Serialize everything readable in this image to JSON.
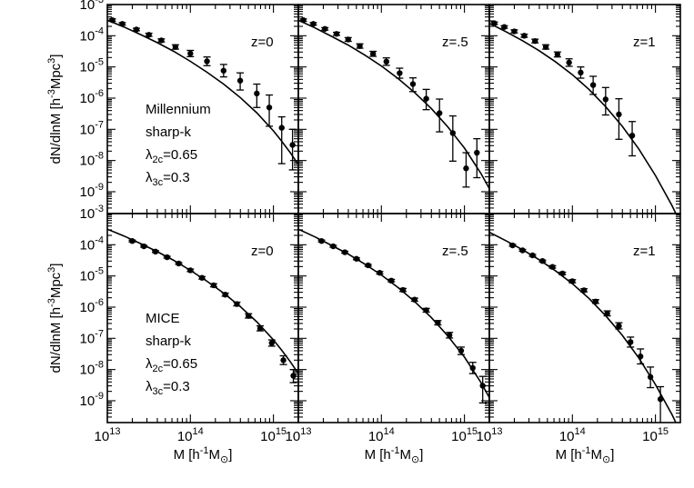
{
  "chart_data": {
    "type": "scatter",
    "title": "",
    "xlabel": "M [h⁻¹M⊙]",
    "ylabel": "dN/dlnM [h⁻³Mpc³]",
    "x_scale": "log10",
    "y_scale": "log10",
    "xlim_log10": [
      13,
      15.3
    ],
    "ylim_log10": [
      -9.7,
      -3
    ],
    "x_ticks": [
      "10^13",
      "10^14",
      "10^15"
    ],
    "y_ticks": [
      "10^-3",
      "10^-4",
      "10^-5",
      "10^-6",
      "10^-7",
      "10^-8",
      "10^-9"
    ],
    "rows": [
      {
        "simulation": "Millennium",
        "filter": "sharp-k",
        "lambda_2c": "0.65",
        "lambda_3c": "0.3",
        "panels": [
          {
            "z_label": "z=0",
            "model_curve_log10": {
              "x": [
                13.0,
                13.2,
                13.4,
                13.6,
                13.8,
                14.0,
                14.2,
                14.4,
                14.6,
                14.8,
                15.0,
                15.1,
                15.2,
                15.3
              ],
              "y": [
                -3.5,
                -3.72,
                -3.96,
                -4.22,
                -4.5,
                -4.82,
                -5.17,
                -5.55,
                -5.98,
                -6.47,
                -7.05,
                -7.38,
                -7.74,
                -8.13
              ]
            },
            "points_log10": {
              "x": [
                13.06,
                13.18,
                13.35,
                13.5,
                13.65,
                13.82,
                14.0,
                14.2,
                14.4,
                14.6,
                14.8,
                14.95,
                15.1,
                15.23
              ],
              "y": [
                -3.5,
                -3.62,
                -3.8,
                -3.97,
                -4.15,
                -4.36,
                -4.57,
                -4.82,
                -5.12,
                -5.44,
                -5.85,
                -6.3,
                -6.95,
                -7.5
              ],
              "err_lo": [
                0.04,
                0.04,
                0.04,
                0.05,
                0.05,
                0.07,
                0.1,
                0.14,
                0.2,
                0.3,
                0.45,
                0.6,
                1.15,
                0.8
              ],
              "err_hi": [
                0.04,
                0.04,
                0.04,
                0.05,
                0.05,
                0.07,
                0.1,
                0.14,
                0.2,
                0.25,
                0.3,
                0.4,
                0.35,
                0.5
              ]
            }
          },
          {
            "z_label": "z=.5",
            "model_curve_log10": {
              "x": [
                13.0,
                13.2,
                13.4,
                13.6,
                13.8,
                14.0,
                14.2,
                14.4,
                14.6,
                14.8,
                15.0,
                15.2,
                15.3
              ],
              "y": [
                -3.5,
                -3.75,
                -4.02,
                -4.3,
                -4.62,
                -4.97,
                -5.37,
                -5.82,
                -6.33,
                -6.92,
                -7.6,
                -8.42,
                -8.9
              ]
            },
            "points_log10": {
              "x": [
                13.06,
                13.18,
                13.32,
                13.46,
                13.6,
                13.74,
                13.9,
                14.06,
                14.22,
                14.38,
                14.54,
                14.7,
                14.86,
                15.02,
                15.15
              ],
              "y": [
                -3.5,
                -3.62,
                -3.78,
                -3.94,
                -4.12,
                -4.33,
                -4.58,
                -4.83,
                -5.2,
                -5.55,
                -6.02,
                -6.48,
                -7.12,
                -8.25,
                -7.75
              ],
              "err_lo": [
                0.04,
                0.04,
                0.04,
                0.05,
                0.06,
                0.07,
                0.08,
                0.12,
                0.16,
                0.24,
                0.35,
                0.6,
                0.9,
                0.6,
                0.8
              ],
              "err_hi": [
                0.04,
                0.04,
                0.04,
                0.05,
                0.06,
                0.07,
                0.08,
                0.12,
                0.16,
                0.2,
                0.3,
                0.45,
                0.55,
                0.5,
                0.45
              ]
            }
          },
          {
            "z_label": "z=1",
            "model_curve_log10": {
              "x": [
                13.0,
                13.2,
                13.4,
                13.6,
                13.8,
                14.0,
                14.2,
                14.4,
                14.6,
                14.8,
                15.0,
                15.2,
                15.3
              ],
              "y": [
                -3.6,
                -3.87,
                -4.16,
                -4.48,
                -4.84,
                -5.25,
                -5.72,
                -6.27,
                -6.9,
                -7.63,
                -8.48,
                -9.45,
                -10.0
              ]
            },
            "points_log10": {
              "x": [
                13.06,
                13.18,
                13.3,
                13.42,
                13.55,
                13.68,
                13.82,
                13.96,
                14.1,
                14.25,
                14.4,
                14.56,
                14.72
              ],
              "y": [
                -3.6,
                -3.72,
                -3.86,
                -4.0,
                -4.17,
                -4.36,
                -4.6,
                -4.86,
                -5.18,
                -5.58,
                -6.04,
                -6.52,
                -7.2
              ],
              "err_lo": [
                0.04,
                0.04,
                0.05,
                0.05,
                0.06,
                0.07,
                0.08,
                0.12,
                0.18,
                0.3,
                0.5,
                0.8,
                0.65
              ],
              "err_hi": [
                0.04,
                0.04,
                0.05,
                0.05,
                0.06,
                0.07,
                0.08,
                0.12,
                0.18,
                0.28,
                0.38,
                0.5,
                0.45
              ]
            }
          }
        ]
      },
      {
        "simulation": "MICE",
        "filter": "sharp-k",
        "lambda_2c": "0.65",
        "lambda_3c": "0.3",
        "panels": [
          {
            "z_label": "z=0",
            "model_curve_log10": {
              "x": [
                13.0,
                13.2,
                13.4,
                13.6,
                13.8,
                14.0,
                14.2,
                14.4,
                14.6,
                14.8,
                15.0,
                15.1,
                15.2,
                15.3
              ],
              "y": [
                -3.5,
                -3.72,
                -3.96,
                -4.22,
                -4.5,
                -4.82,
                -5.17,
                -5.55,
                -5.98,
                -6.47,
                -7.05,
                -7.38,
                -7.74,
                -8.13
              ]
            },
            "points_log10": {
              "x": [
                13.3,
                13.44,
                13.58,
                13.72,
                13.86,
                14.0,
                14.14,
                14.28,
                14.42,
                14.56,
                14.7,
                14.84,
                14.98,
                15.12,
                15.24
              ],
              "y": [
                -3.88,
                -4.05,
                -4.22,
                -4.4,
                -4.6,
                -4.82,
                -5.06,
                -5.3,
                -5.6,
                -5.9,
                -6.28,
                -6.68,
                -7.15,
                -7.7,
                -8.2
              ],
              "err_lo": [
                0.03,
                0.03,
                0.03,
                0.03,
                0.03,
                0.04,
                0.04,
                0.05,
                0.05,
                0.06,
                0.07,
                0.08,
                0.1,
                0.14,
                0.22
              ],
              "err_hi": [
                0.03,
                0.03,
                0.03,
                0.03,
                0.03,
                0.04,
                0.04,
                0.05,
                0.05,
                0.06,
                0.07,
                0.08,
                0.1,
                0.14,
                0.2
              ]
            }
          },
          {
            "z_label": "z=.5",
            "model_curve_log10": {
              "x": [
                13.0,
                13.2,
                13.4,
                13.6,
                13.8,
                14.0,
                14.2,
                14.4,
                14.6,
                14.8,
                15.0,
                15.2,
                15.3
              ],
              "y": [
                -3.5,
                -3.75,
                -4.02,
                -4.3,
                -4.62,
                -4.97,
                -5.37,
                -5.82,
                -6.33,
                -6.92,
                -7.6,
                -8.42,
                -8.9
              ]
            },
            "points_log10": {
              "x": [
                13.28,
                13.42,
                13.56,
                13.7,
                13.84,
                13.98,
                14.12,
                14.26,
                14.4,
                14.54,
                14.68,
                14.82,
                14.96,
                15.1,
                15.22
              ],
              "y": [
                -3.88,
                -4.05,
                -4.24,
                -4.45,
                -4.66,
                -4.9,
                -5.15,
                -5.45,
                -5.76,
                -6.1,
                -6.5,
                -6.9,
                -7.4,
                -7.95,
                -8.52
              ],
              "err_lo": [
                0.03,
                0.03,
                0.03,
                0.03,
                0.03,
                0.04,
                0.04,
                0.05,
                0.05,
                0.06,
                0.07,
                0.09,
                0.12,
                0.18,
                0.55
              ],
              "err_hi": [
                0.03,
                0.03,
                0.03,
                0.03,
                0.03,
                0.04,
                0.04,
                0.05,
                0.05,
                0.06,
                0.07,
                0.09,
                0.12,
                0.18,
                0.3
              ]
            }
          },
          {
            "z_label": "z=1",
            "model_curve_log10": {
              "x": [
                13.0,
                13.2,
                13.4,
                13.6,
                13.8,
                14.0,
                14.2,
                14.4,
                14.6,
                14.8,
                15.0,
                15.2,
                15.3
              ],
              "y": [
                -3.6,
                -3.87,
                -4.16,
                -4.48,
                -4.84,
                -5.25,
                -5.72,
                -6.27,
                -6.9,
                -7.63,
                -8.48,
                -9.45,
                -10.0
              ]
            },
            "points_log10": {
              "x": [
                13.28,
                13.4,
                13.52,
                13.64,
                13.76,
                13.88,
                14.0,
                14.14,
                14.28,
                14.42,
                14.56,
                14.7,
                14.82,
                14.94,
                15.06
              ],
              "y": [
                -4.02,
                -4.18,
                -4.34,
                -4.52,
                -4.71,
                -4.92,
                -5.17,
                -5.46,
                -5.82,
                -6.2,
                -6.6,
                -7.12,
                -7.58,
                -8.24,
                -8.95
              ],
              "err_lo": [
                0.03,
                0.03,
                0.03,
                0.03,
                0.04,
                0.04,
                0.05,
                0.05,
                0.06,
                0.08,
                0.1,
                0.16,
                0.24,
                0.34,
                0.8
              ],
              "err_hi": [
                0.03,
                0.03,
                0.03,
                0.03,
                0.04,
                0.04,
                0.05,
                0.05,
                0.06,
                0.08,
                0.1,
                0.16,
                0.24,
                0.32,
                0.4
              ]
            }
          }
        ]
      }
    ]
  },
  "labels": {
    "xtick_base": "10",
    "xtick_exps": [
      "13",
      "14",
      "15"
    ],
    "ytick_base": "10",
    "ytick_exps": [
      "-3",
      "-4",
      "-5",
      "-6",
      "-7",
      "-8",
      "-9"
    ],
    "ylabel_main": "dN/dlnM [h",
    "ylabel_exp": "-3",
    "ylabel_unit": "Mpc",
    "ylabel_unit_exp": "3",
    "ylabel_close": "]",
    "xlabel_main": "M [h",
    "xlabel_exp": "-1",
    "xlabel_unit": "M",
    "xlabel_sub": "⊙",
    "xlabel_close": "]",
    "lambda": "λ",
    "l2_sub": "2c",
    "l3_sub": "3c",
    "eq": "="
  },
  "colors": {
    "ink": "#000000",
    "background": "#ffffff"
  }
}
